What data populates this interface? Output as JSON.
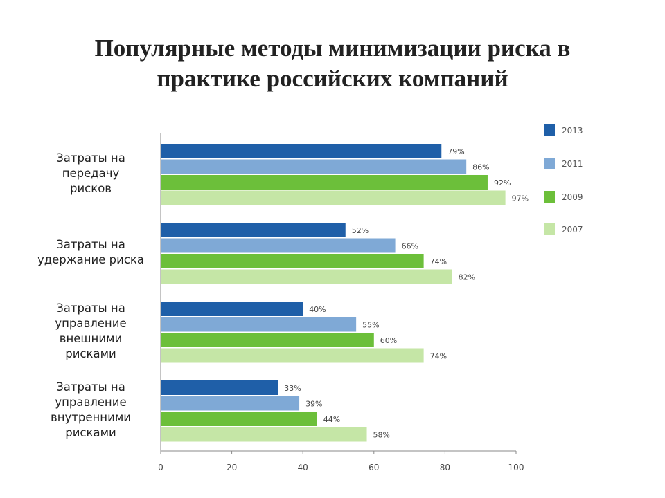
{
  "title": {
    "line1": "Популярные методы минимизации риска в",
    "line2": "практике российских компаний"
  },
  "chart_data": {
    "type": "bar",
    "orientation": "horizontal",
    "categories": [
      [
        "Затраты на",
        "передачу",
        "рисков"
      ],
      [
        "Затраты на",
        "удержание риска"
      ],
      [
        "Затраты на",
        "управление",
        "внешними",
        "рисками"
      ],
      [
        "Затраты на",
        "управление",
        "внутренними",
        "рисками"
      ]
    ],
    "series": [
      {
        "name": "2013",
        "color": "#1f5fa8",
        "values": [
          79,
          52,
          40,
          33
        ]
      },
      {
        "name": "2011",
        "color": "#7fa9d6",
        "values": [
          86,
          66,
          55,
          39
        ]
      },
      {
        "name": "2009",
        "color": "#6cbf3a",
        "values": [
          92,
          74,
          60,
          44
        ]
      },
      {
        "name": "2007",
        "color": "#c5e6a6",
        "values": [
          97,
          82,
          74,
          58
        ]
      }
    ],
    "value_suffix": "%",
    "xlim": [
      0,
      100
    ],
    "xticks": [
      0,
      20,
      40,
      60,
      80,
      100
    ],
    "legend_position": "right",
    "grid": false
  }
}
